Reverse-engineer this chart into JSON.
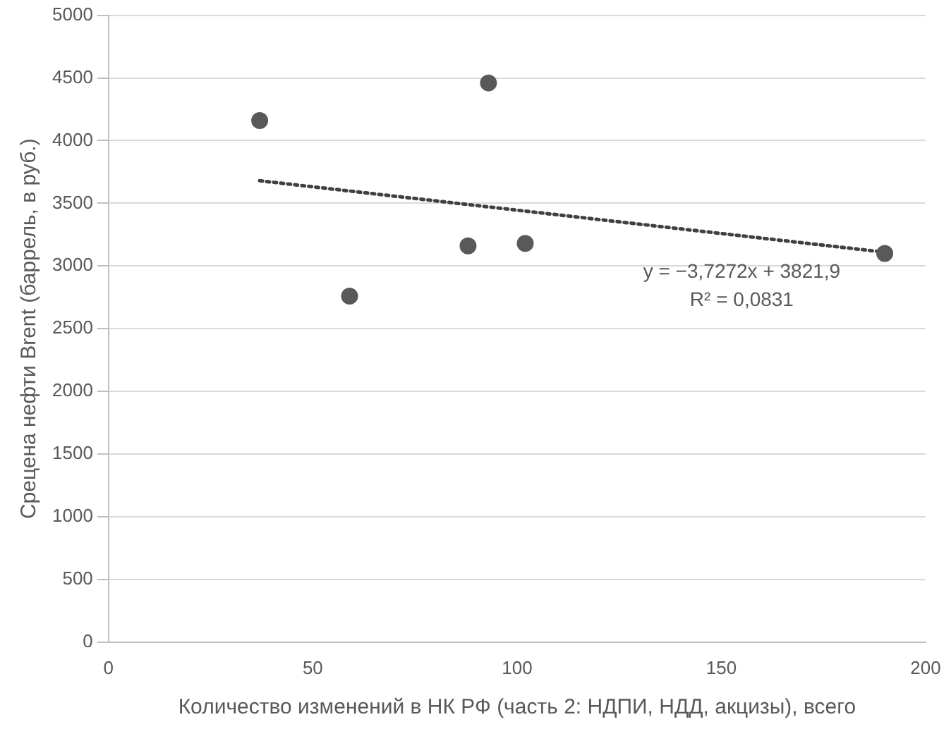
{
  "chart_data": {
    "type": "scatter",
    "xlabel": "Количество изменений в НК РФ (часть 2: НДПИ, НДД, акцизы), всего",
    "ylabel": "Срецена нефти Brent (баррель, в руб.)",
    "xlim": [
      0,
      200
    ],
    "xticks": [
      0,
      50,
      100,
      150,
      200
    ],
    "ylim": [
      0,
      5000
    ],
    "yticks": [
      0,
      500,
      1000,
      1500,
      2000,
      2500,
      3000,
      3500,
      4000,
      4500,
      5000
    ],
    "grid": "y",
    "legend": false,
    "series": [
      {
        "color": "#595959",
        "marker": "circle",
        "x": [
          37,
          59,
          88,
          93,
          102,
          190
        ],
        "values": [
          4160,
          2760,
          3160,
          4460,
          3180,
          3100
        ]
      },
      {
        "type": "line",
        "color": "#404040",
        "marker": "none",
        "line_style": "dotted",
        "x": [
          37,
          190
        ],
        "values": [
          3680,
          3110
        ]
      }
    ],
    "annotations": [
      "y = −3,7272x + 3821,9",
      "R² = 0,0831"
    ]
  }
}
